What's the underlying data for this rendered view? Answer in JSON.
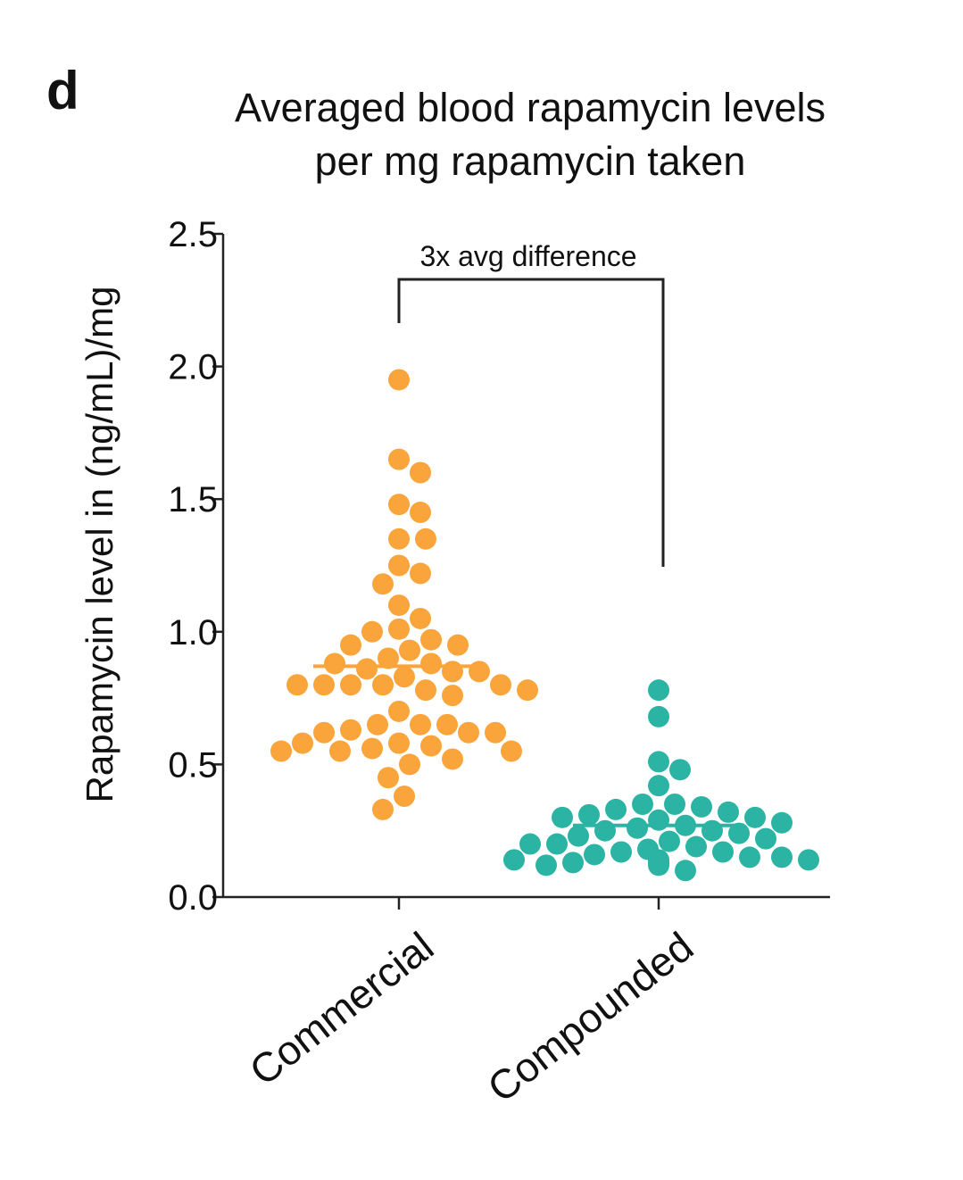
{
  "panel_label": "d",
  "chart_data": {
    "type": "scatter",
    "title_lines": [
      "Averaged blood rapamycin levels",
      "per mg rapamycin taken"
    ],
    "xlabel": "",
    "ylabel": "Rapamycin level in (ng/mL)/mg",
    "ylim": [
      0,
      2.5
    ],
    "yticks": [
      "0.0",
      "0.5",
      "1.0",
      "1.5",
      "2.0",
      "2.5"
    ],
    "grid": false,
    "categories": [
      "Commercial",
      "Compounded"
    ],
    "annotation": "3x avg difference",
    "series": [
      {
        "category": "Commercial",
        "color": "#F9A53B",
        "mean": 0.87,
        "values": [
          1.95,
          1.65,
          1.6,
          1.48,
          1.45,
          1.35,
          1.35,
          1.25,
          1.22,
          1.18,
          1.1,
          1.05,
          1.01,
          1.0,
          0.97,
          0.95,
          0.95,
          0.93,
          0.9,
          0.88,
          0.88,
          0.86,
          0.85,
          0.85,
          0.83,
          0.8,
          0.8,
          0.8,
          0.8,
          0.8,
          0.78,
          0.78,
          0.76,
          0.7,
          0.65,
          0.65,
          0.65,
          0.63,
          0.62,
          0.62,
          0.62,
          0.58,
          0.58,
          0.57,
          0.56,
          0.55,
          0.55,
          0.55,
          0.52,
          0.5,
          0.45,
          0.38,
          0.33
        ]
      },
      {
        "category": "Compounded",
        "color": "#2BB3A3",
        "mean": 0.27,
        "values": [
          0.78,
          0.68,
          0.51,
          0.48,
          0.42,
          0.35,
          0.35,
          0.34,
          0.33,
          0.32,
          0.31,
          0.3,
          0.3,
          0.29,
          0.28,
          0.27,
          0.26,
          0.25,
          0.25,
          0.24,
          0.23,
          0.22,
          0.21,
          0.2,
          0.2,
          0.19,
          0.18,
          0.17,
          0.17,
          0.16,
          0.15,
          0.15,
          0.14,
          0.14,
          0.14,
          0.13,
          0.13,
          0.13,
          0.12,
          0.12,
          0.1
        ]
      }
    ]
  }
}
